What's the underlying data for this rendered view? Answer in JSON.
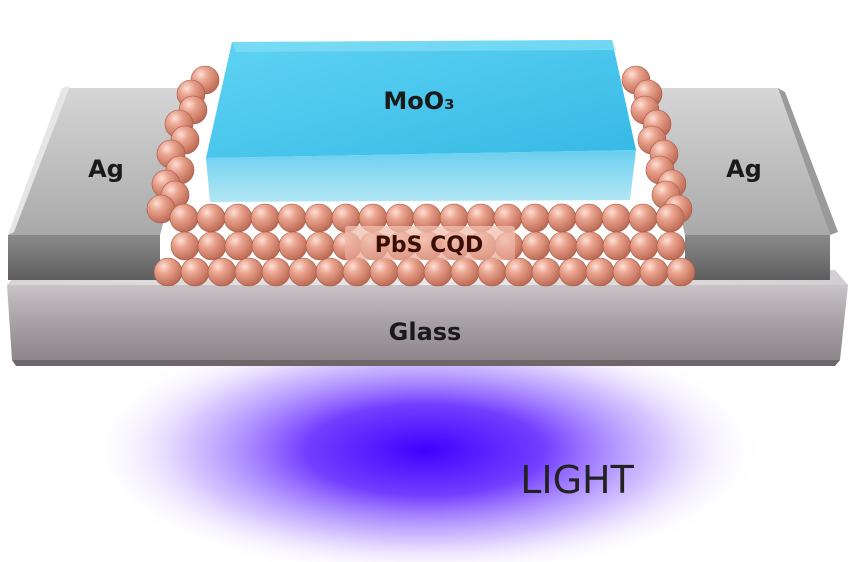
{
  "labels": {
    "top_layer": "MoO₃",
    "qd_layer": "PbS CQD",
    "substrate": "Glass",
    "left_electrode": "Ag",
    "right_electrode": "Ag",
    "illumination": "LIGHT"
  },
  "colors": {
    "moo3": "#3ec3ec",
    "moo3_top": "#56cff2",
    "sphere": "#e2957f",
    "sphere_highlight": "#fbd3c6",
    "silver": "#bfbfbf",
    "silver_dark": "#6f6f6f",
    "glass": "#b7b1b4",
    "glass_dark": "#7c7579",
    "light": "#4b00ff",
    "text_dark": "#1a1a1a",
    "qd_text": "#3a0d05"
  }
}
